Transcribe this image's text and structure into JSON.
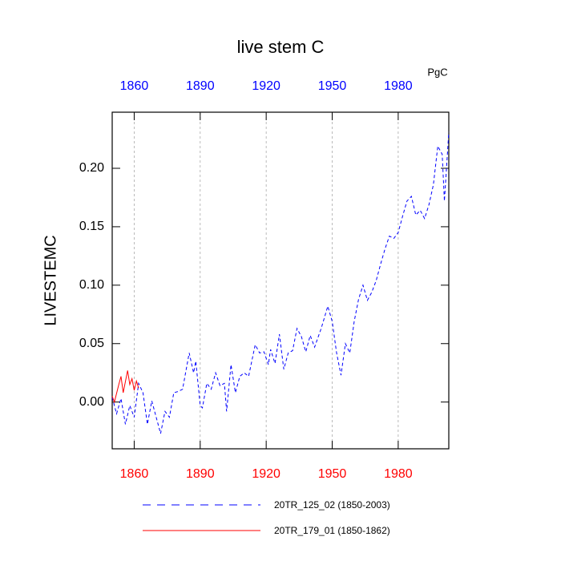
{
  "chart_data": {
    "type": "line",
    "title": "live stem C",
    "unit_label": "PgC",
    "y_label": "LIVESTEMC",
    "xlim": [
      1850,
      2003
    ],
    "xticks": [
      1860,
      1890,
      1920,
      1950,
      1980
    ],
    "top_tick_color": "#0000ff",
    "bottom_tick_color": "#ff0000",
    "ylim": [
      -0.04,
      0.248
    ],
    "yticks": [
      {
        "value": 0,
        "label": "0.00"
      },
      {
        "value": 0.05,
        "label": "0.05"
      },
      {
        "value": 0.1,
        "label": "0.10"
      },
      {
        "value": 0.15,
        "label": "0.15"
      },
      {
        "value": 0.2,
        "label": "0.20"
      }
    ],
    "grid": true,
    "series": [
      {
        "name": "20TR_125_02 (1850-2003)",
        "color": "#0000ff",
        "dashed": true,
        "x": [
          1850,
          1852,
          1854,
          1856,
          1858,
          1860,
          1862,
          1864,
          1866,
          1868,
          1870,
          1872,
          1874,
          1876,
          1878,
          1880,
          1882,
          1885,
          1887,
          1888,
          1890,
          1891,
          1893,
          1895,
          1897,
          1899,
          1901,
          1902,
          1904,
          1906,
          1908,
          1910,
          1912,
          1915,
          1917,
          1919,
          1921,
          1922,
          1924,
          1926,
          1928,
          1930,
          1932,
          1934,
          1936,
          1938,
          1940,
          1942,
          1945,
          1948,
          1950,
          1952,
          1954,
          1956,
          1958,
          1960,
          1962,
          1964,
          1966,
          1968,
          1970,
          1972,
          1974,
          1976,
          1978,
          1980,
          1982,
          1984,
          1986,
          1988,
          1990,
          1992,
          1994,
          1996,
          1998,
          2000,
          2001,
          2003
        ],
        "values": [
          0.004,
          -0.01,
          0.003,
          -0.019,
          -0.003,
          -0.013,
          0.016,
          0.008,
          -0.019,
          0.001,
          -0.013,
          -0.027,
          -0.008,
          -0.013,
          0.008,
          0.009,
          0.011,
          0.042,
          0.025,
          0.035,
          -0.003,
          -0.005,
          0.016,
          0.011,
          0.025,
          0.014,
          0.016,
          -0.008,
          0.032,
          0.008,
          0.022,
          0.025,
          0.022,
          0.049,
          0.042,
          0.043,
          0.032,
          0.045,
          0.033,
          0.058,
          0.028,
          0.042,
          0.044,
          0.063,
          0.056,
          0.043,
          0.057,
          0.047,
          0.063,
          0.082,
          0.069,
          0.042,
          0.023,
          0.05,
          0.042,
          0.069,
          0.088,
          0.1,
          0.087,
          0.094,
          0.104,
          0.118,
          0.131,
          0.142,
          0.14,
          0.145,
          0.159,
          0.172,
          0.176,
          0.16,
          0.164,
          0.157,
          0.169,
          0.186,
          0.219,
          0.212,
          0.172,
          0.231
        ]
      },
      {
        "name": "20TR_179_01 (1850-1862)",
        "color": "#ff0000",
        "dashed": false,
        "x": [
          1850,
          1851,
          1853,
          1854,
          1855,
          1857,
          1858,
          1859,
          1860,
          1861,
          1862
        ],
        "values": [
          0.005,
          0.0,
          0.015,
          0.022,
          0.008,
          0.027,
          0.015,
          0.02,
          0.01,
          0.018,
          0.012
        ]
      }
    ]
  }
}
